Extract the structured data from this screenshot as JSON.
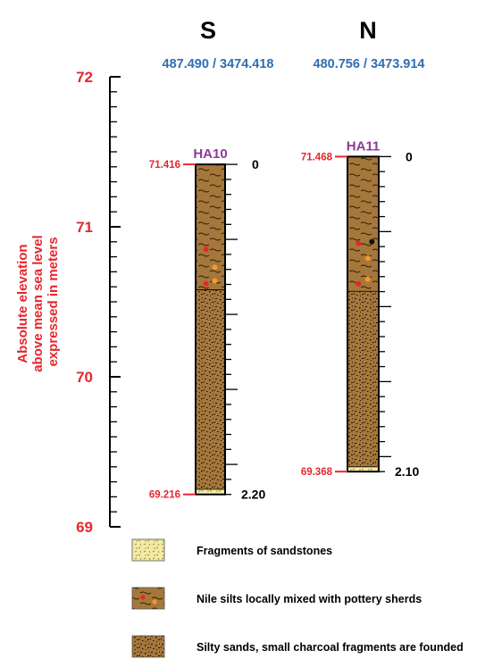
{
  "directions": {
    "south": "S",
    "north": "N"
  },
  "coordinates": {
    "south": "487.490 / 3474.418",
    "north": "480.756 / 3473.914"
  },
  "axis": {
    "title_lines": [
      "Absolute elevation",
      "above mean sea level",
      "expressed in meters"
    ],
    "min": 69,
    "max": 72,
    "ticks": [
      {
        "value": 69,
        "label": "69"
      },
      {
        "value": 70,
        "label": "70"
      },
      {
        "value": 71,
        "label": "71"
      },
      {
        "value": 72,
        "label": "72"
      }
    ],
    "minor_step": 0.1
  },
  "cores": [
    {
      "id": "HA10",
      "top_elevation": 71.416,
      "bottom_elevation": 69.216,
      "top_label": "71.416",
      "bottom_label": "69.216",
      "depth_top_label": "0",
      "depth_bottom_label": "2.20",
      "layers": [
        {
          "type": "nile-silts",
          "from": 71.416,
          "to": 70.58
        },
        {
          "type": "silty-sands",
          "from": 70.58,
          "to": 69.25
        },
        {
          "type": "sandstones",
          "from": 69.25,
          "to": 69.216
        }
      ],
      "inclusions": [
        {
          "type": "pottery-red",
          "elevation": 70.85
        },
        {
          "type": "pottery-orange",
          "elevation": 70.73
        },
        {
          "type": "pottery-orange",
          "elevation": 70.64
        },
        {
          "type": "pottery-red",
          "elevation": 70.62
        }
      ]
    },
    {
      "id": "HA11",
      "top_elevation": 71.468,
      "bottom_elevation": 69.368,
      "top_label": "71.468",
      "bottom_label": "69.368",
      "depth_top_label": "0",
      "depth_bottom_label": "2.10",
      "layers": [
        {
          "type": "nile-silts",
          "from": 71.468,
          "to": 70.57
        },
        {
          "type": "silty-sands",
          "from": 70.57,
          "to": 69.4
        },
        {
          "type": "sandstones",
          "from": 69.4,
          "to": 69.368
        }
      ],
      "inclusions": [
        {
          "type": "pottery-red",
          "elevation": 70.89
        },
        {
          "type": "charcoal",
          "elevation": 70.9
        },
        {
          "type": "pottery-orange",
          "elevation": 70.79
        },
        {
          "type": "pottery-orange",
          "elevation": 70.65
        },
        {
          "type": "pottery-red",
          "elevation": 70.62
        }
      ]
    }
  ],
  "legend": [
    {
      "type": "sandstones",
      "label": "Fragments of sandstones"
    },
    {
      "type": "nile-silts",
      "label": "Nile silts locally mixed with pottery sherds"
    },
    {
      "type": "silty-sands",
      "label": "Silty sands, small charcoal fragments are founded"
    }
  ],
  "colors": {
    "elevation_red": "#e8262f",
    "coordinate_blue": "#2e6fb3",
    "core_label_purple": "#8e3b96",
    "soil_brown": "#a5773b",
    "sand_yellow": "#f3eaa4",
    "charcoal_black": "#111111",
    "pottery_orange": "#f39a2a"
  }
}
